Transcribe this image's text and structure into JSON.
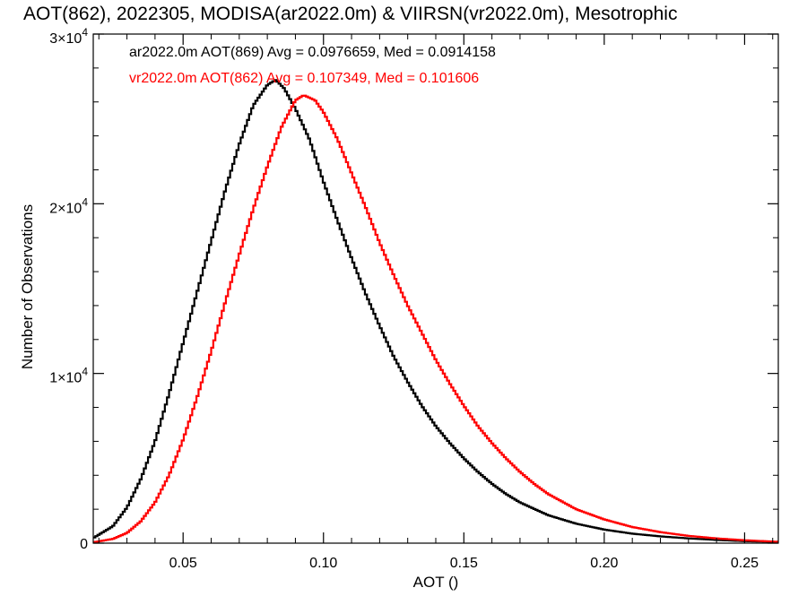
{
  "chart_data": {
    "type": "line",
    "title": "AOT(862), 2022305, MODISA(ar2022.0m) & VIIRSN(vr2022.0m), Mesotrophic",
    "xlabel": "AOT ()",
    "ylabel": "Number of Observations",
    "xlim": [
      0.018,
      0.262
    ],
    "ylim": [
      0,
      30000
    ],
    "x_ticks": [
      {
        "value": 0.05,
        "label": "0.05"
      },
      {
        "value": 0.1,
        "label": "0.10"
      },
      {
        "value": 0.15,
        "label": "0.15"
      },
      {
        "value": 0.2,
        "label": "0.20"
      },
      {
        "value": 0.25,
        "label": "0.25"
      }
    ],
    "y_ticks": [
      {
        "value": 0,
        "mantissa": "0",
        "exponent": ""
      },
      {
        "value": 10000,
        "mantissa": "1×10",
        "exponent": "4"
      },
      {
        "value": 20000,
        "mantissa": "2×10",
        "exponent": "4"
      },
      {
        "value": 30000,
        "mantissa": "3×10",
        "exponent": "4"
      }
    ],
    "grid": false,
    "series": [
      {
        "label": "ar2022.0m AOT(869) Avg = 0.0976659, Med = 0.0914158",
        "color": "#000000",
        "points": [
          [
            0.018,
            300
          ],
          [
            0.025,
            1000
          ],
          [
            0.03,
            2100
          ],
          [
            0.035,
            3800
          ],
          [
            0.04,
            6000
          ],
          [
            0.045,
            8800
          ],
          [
            0.05,
            11800
          ],
          [
            0.055,
            14800
          ],
          [
            0.06,
            17800
          ],
          [
            0.065,
            20800
          ],
          [
            0.07,
            23500
          ],
          [
            0.075,
            25800
          ],
          [
            0.08,
            27000
          ],
          [
            0.083,
            27300
          ],
          [
            0.086,
            26800
          ],
          [
            0.09,
            25600
          ],
          [
            0.095,
            23800
          ],
          [
            0.1,
            21300
          ],
          [
            0.105,
            19000
          ],
          [
            0.11,
            16800
          ],
          [
            0.115,
            14700
          ],
          [
            0.12,
            12800
          ],
          [
            0.125,
            11000
          ],
          [
            0.13,
            9500
          ],
          [
            0.135,
            8100
          ],
          [
            0.14,
            6900
          ],
          [
            0.145,
            5900
          ],
          [
            0.15,
            5000
          ],
          [
            0.155,
            4200
          ],
          [
            0.16,
            3500
          ],
          [
            0.165,
            2900
          ],
          [
            0.17,
            2400
          ],
          [
            0.18,
            1650
          ],
          [
            0.19,
            1150
          ],
          [
            0.2,
            800
          ],
          [
            0.21,
            560
          ],
          [
            0.22,
            400
          ],
          [
            0.23,
            280
          ],
          [
            0.24,
            190
          ],
          [
            0.25,
            120
          ],
          [
            0.262,
            70
          ]
        ]
      },
      {
        "label": "vr2022.0m AOT(862) Avg = 0.107349, Med = 0.101606",
        "color": "#ff0000",
        "points": [
          [
            0.018,
            50
          ],
          [
            0.025,
            250
          ],
          [
            0.03,
            600
          ],
          [
            0.035,
            1300
          ],
          [
            0.04,
            2400
          ],
          [
            0.045,
            4000
          ],
          [
            0.05,
            6100
          ],
          [
            0.055,
            8600
          ],
          [
            0.06,
            11300
          ],
          [
            0.065,
            14200
          ],
          [
            0.07,
            17000
          ],
          [
            0.075,
            19700
          ],
          [
            0.08,
            22200
          ],
          [
            0.085,
            24500
          ],
          [
            0.09,
            26100
          ],
          [
            0.093,
            26400
          ],
          [
            0.097,
            26100
          ],
          [
            0.1,
            25400
          ],
          [
            0.105,
            23800
          ],
          [
            0.11,
            21800
          ],
          [
            0.115,
            19800
          ],
          [
            0.12,
            17700
          ],
          [
            0.125,
            15800
          ],
          [
            0.13,
            14000
          ],
          [
            0.135,
            12400
          ],
          [
            0.14,
            10800
          ],
          [
            0.145,
            9400
          ],
          [
            0.15,
            8100
          ],
          [
            0.155,
            6900
          ],
          [
            0.16,
            5900
          ],
          [
            0.165,
            5000
          ],
          [
            0.17,
            4200
          ],
          [
            0.175,
            3500
          ],
          [
            0.18,
            2900
          ],
          [
            0.19,
            2000
          ],
          [
            0.2,
            1400
          ],
          [
            0.21,
            950
          ],
          [
            0.22,
            650
          ],
          [
            0.23,
            430
          ],
          [
            0.24,
            280
          ],
          [
            0.25,
            170
          ],
          [
            0.262,
            80
          ]
        ]
      }
    ]
  }
}
